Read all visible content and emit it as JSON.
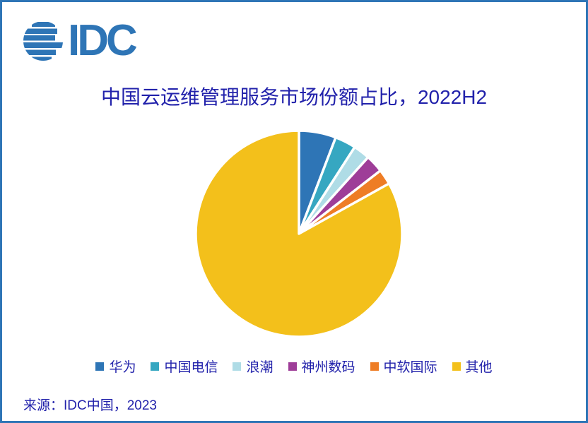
{
  "theme": {
    "frame_border_color": "#2E75B6",
    "background_color": "#FFFFFF",
    "text_color": "#2222AB",
    "logo_color": "#2E75B6",
    "slice_gap_color": "#FFFFFF"
  },
  "logo": {
    "text": "IDC",
    "icon": "globe-stripes-icon"
  },
  "header": {
    "title": "中国云运维管理服务市场份额占比，2022H2"
  },
  "chart_data": {
    "type": "pie",
    "title": "中国云运维管理服务市场份额占比，2022H2",
    "values_unit": "% market share",
    "values_are_estimates_from_slice_angles": true,
    "start_angle_deg": 0,
    "direction": "clockwise",
    "legend_position": "bottom",
    "slices": [
      {
        "label": "华为",
        "value": 5.8,
        "color": "#2E75B6"
      },
      {
        "label": "中国电信",
        "value": 3.3,
        "color": "#36A7C1"
      },
      {
        "label": "浪潮",
        "value": 2.6,
        "color": "#AFDCE6"
      },
      {
        "label": "神州数码",
        "value": 2.8,
        "color": "#9E3D98"
      },
      {
        "label": "中软国际",
        "value": 2.4,
        "color": "#EE7D25"
      },
      {
        "label": "其他",
        "value": 83.1,
        "color": "#F3C01B"
      }
    ]
  },
  "footer": {
    "source": "来源：IDC中国，2023"
  }
}
